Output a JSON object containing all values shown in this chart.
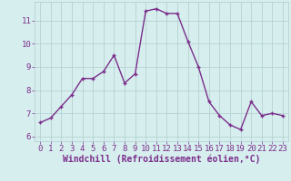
{
  "x": [
    0,
    1,
    2,
    3,
    4,
    5,
    6,
    7,
    8,
    9,
    10,
    11,
    12,
    13,
    14,
    15,
    16,
    17,
    18,
    19,
    20,
    21,
    22,
    23
  ],
  "y": [
    6.6,
    6.8,
    7.3,
    7.8,
    8.5,
    8.5,
    8.8,
    9.5,
    8.3,
    8.7,
    11.4,
    11.5,
    11.3,
    11.3,
    10.1,
    9.0,
    7.5,
    6.9,
    6.5,
    6.3,
    7.5,
    6.9,
    7.0,
    6.9
  ],
  "line_color": "#7b2d8b",
  "marker": "+",
  "bg_color": "#d6eeee",
  "grid_color": "#b0cccc",
  "xlabel": "Windchill (Refroidissement éolien,°C)",
  "xlim": [
    -0.5,
    23.5
  ],
  "ylim": [
    5.8,
    11.8
  ],
  "yticks": [
    6,
    7,
    8,
    9,
    10,
    11
  ],
  "xticks": [
    0,
    1,
    2,
    3,
    4,
    5,
    6,
    7,
    8,
    9,
    10,
    11,
    12,
    13,
    14,
    15,
    16,
    17,
    18,
    19,
    20,
    21,
    22,
    23
  ],
  "tick_color": "#7b2d8b",
  "label_color": "#7b2d8b",
  "font_size": 6.5,
  "xlabel_font_size": 7,
  "line_width": 1.0,
  "marker_size": 3.5,
  "marker_edge_width": 1.0
}
